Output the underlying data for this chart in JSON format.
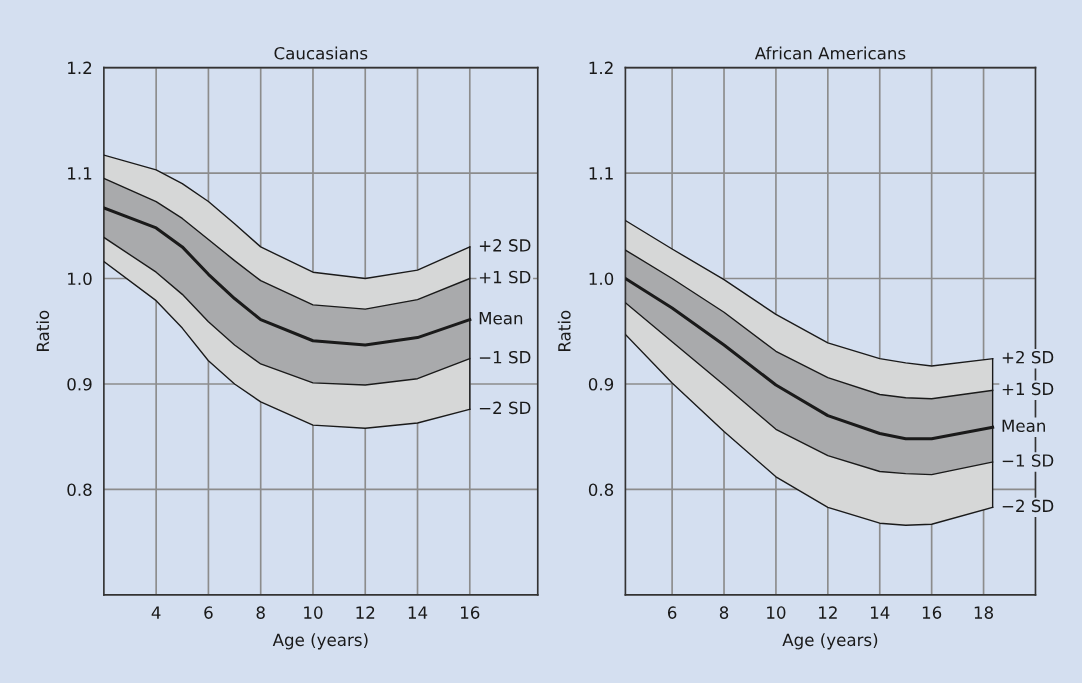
{
  "chart_data": [
    {
      "type": "line",
      "title": "Caucasians",
      "xlabel": "Age (years)",
      "ylabel": "Ratio",
      "xlim": [
        2,
        18.6
      ],
      "ylim": [
        0.7,
        1.2
      ],
      "xticks": [
        4,
        6,
        8,
        10,
        12,
        14,
        16
      ],
      "yticks": [
        {
          "value": 0.8,
          "label": "0.8"
        },
        {
          "value": 0.9,
          "label": "0.9"
        },
        {
          "value": 1,
          "label": "1.0"
        },
        {
          "value": 1.1,
          "label": "1.1"
        },
        {
          "value": 1.2,
          "label": "1.2"
        }
      ],
      "grid": true,
      "legend": false,
      "x": [
        2,
        4,
        5,
        6,
        7,
        8,
        10,
        12,
        14,
        16
      ],
      "series": [
        {
          "name": "+2 SD",
          "color": "#1a1a1a",
          "values": [
            1.117,
            1.103,
            1.09,
            1.073,
            1.052,
            1.03,
            1.006,
            1.0,
            1.008,
            1.03
          ],
          "upper": [
            1.117,
            1.103,
            1.09,
            1.073,
            1.052,
            1.03,
            1.006,
            1.0,
            1.008,
            1.03
          ],
          "lower": [
            1.016,
            0.979,
            0.953,
            0.922,
            0.9,
            0.883,
            0.861,
            0.858,
            0.863,
            0.876
          ]
        },
        {
          "name": "+1 SD",
          "color": "#1a1a1a",
          "values": [
            1.095,
            1.073,
            1.057,
            1.037,
            1.017,
            0.998,
            0.975,
            0.971,
            0.98,
            1.0
          ],
          "upper": [
            1.095,
            1.073,
            1.057,
            1.037,
            1.017,
            0.998,
            0.975,
            0.971,
            0.98,
            1.0
          ],
          "lower": [
            1.039,
            1.006,
            0.985,
            0.959,
            0.937,
            0.919,
            0.901,
            0.899,
            0.905,
            0.924
          ]
        },
        {
          "name": "Mean",
          "color": "#1a1a1a",
          "values": [
            1.067,
            1.048,
            1.03,
            1.004,
            0.981,
            0.961,
            0.941,
            0.937,
            0.944,
            0.961
          ]
        },
        {
          "name": "−1 SD",
          "color": "#1a1a1a",
          "values": [
            1.039,
            1.006,
            0.985,
            0.959,
            0.937,
            0.919,
            0.901,
            0.899,
            0.905,
            0.924
          ]
        },
        {
          "name": "−2 SD",
          "color": "#1a1a1a",
          "values": [
            1.016,
            0.979,
            0.953,
            0.922,
            0.9,
            0.883,
            0.861,
            0.858,
            0.863,
            0.876
          ]
        }
      ]
    },
    {
      "type": "line",
      "title": "African Americans",
      "xlabel": "Age (years)",
      "ylabel": "Ratio",
      "xlim": [
        4.2,
        20
      ],
      "ylim": [
        0.7,
        1.2
      ],
      "xticks": [
        6,
        8,
        10,
        12,
        14,
        16,
        18
      ],
      "yticks": [
        {
          "value": 0.8,
          "label": "0.8"
        },
        {
          "value": 0.9,
          "label": "0.9"
        },
        {
          "value": 1,
          "label": "1.0"
        },
        {
          "value": 1.1,
          "label": "1.1"
        },
        {
          "value": 1.2,
          "label": "1.2"
        }
      ],
      "grid": true,
      "legend": false,
      "x": [
        4.2,
        6,
        8,
        10,
        12,
        14,
        15,
        16,
        18.35
      ],
      "series": [
        {
          "name": "+2 SD",
          "color": "#1a1a1a",
          "values": [
            1.055,
            1.028,
            0.999,
            0.966,
            0.939,
            0.924,
            0.92,
            0.917,
            0.924
          ],
          "upper": [
            1.055,
            1.028,
            0.999,
            0.966,
            0.939,
            0.924,
            0.92,
            0.917,
            0.924
          ],
          "lower": [
            0.947,
            0.901,
            0.855,
            0.812,
            0.783,
            0.768,
            0.766,
            0.767,
            0.783
          ]
        },
        {
          "name": "+1 SD",
          "color": "#1a1a1a",
          "values": [
            1.027,
            1.0,
            0.968,
            0.931,
            0.906,
            0.89,
            0.887,
            0.886,
            0.894
          ],
          "upper": [
            1.027,
            1.0,
            0.968,
            0.931,
            0.906,
            0.89,
            0.887,
            0.886,
            0.894
          ],
          "lower": [
            0.977,
            0.94,
            0.899,
            0.857,
            0.832,
            0.817,
            0.815,
            0.814,
            0.826
          ]
        },
        {
          "name": "Mean",
          "color": "#1a1a1a",
          "values": [
            1.0,
            0.972,
            0.937,
            0.899,
            0.87,
            0.853,
            0.848,
            0.848,
            0.859
          ]
        },
        {
          "name": "−1 SD",
          "color": "#1a1a1a",
          "values": [
            0.977,
            0.94,
            0.899,
            0.857,
            0.832,
            0.817,
            0.815,
            0.814,
            0.826
          ]
        },
        {
          "name": "−2 SD",
          "color": "#1a1a1a",
          "values": [
            0.947,
            0.901,
            0.855,
            0.812,
            0.783,
            0.768,
            0.766,
            0.767,
            0.783
          ]
        }
      ]
    }
  ]
}
